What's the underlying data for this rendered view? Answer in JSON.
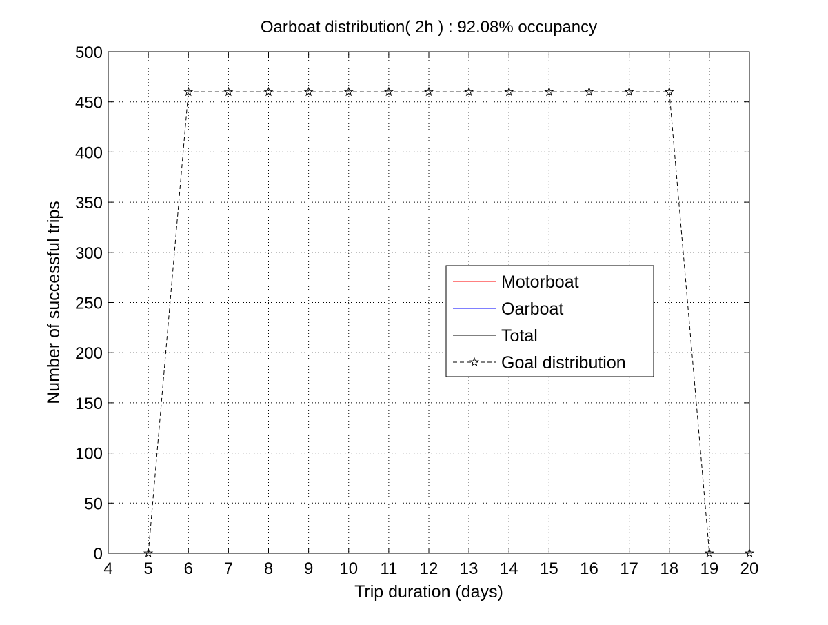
{
  "chart_data": {
    "type": "line",
    "title": "Oarboat distribution( 2h ) : 92.08% occupancy",
    "xlabel": "Trip duration (days)",
    "ylabel": "Number of successful trips",
    "xlim": [
      4,
      20
    ],
    "ylim": [
      0,
      500
    ],
    "xticks": [
      4,
      5,
      6,
      7,
      8,
      9,
      10,
      11,
      12,
      13,
      14,
      15,
      16,
      17,
      18,
      19,
      20
    ],
    "yticks": [
      0,
      50,
      100,
      150,
      200,
      250,
      300,
      350,
      400,
      450,
      500
    ],
    "grid": true,
    "legend_position": "center-right",
    "series": [
      {
        "name": "Motorboat",
        "color": "#ff0000",
        "style": "solid",
        "marker": "none",
        "x": [],
        "y": []
      },
      {
        "name": "Oarboat",
        "color": "#0000ff",
        "style": "solid",
        "marker": "none",
        "x": [],
        "y": []
      },
      {
        "name": "Total",
        "color": "#000000",
        "style": "solid",
        "marker": "none",
        "x": [],
        "y": []
      },
      {
        "name": "Goal distribution",
        "color": "#000000",
        "style": "dashed",
        "marker": "pentagram",
        "x": [
          5,
          6,
          7,
          8,
          9,
          10,
          11,
          12,
          13,
          14,
          15,
          16,
          17,
          18,
          19,
          20
        ],
        "y": [
          0,
          460,
          460,
          460,
          460,
          460,
          460,
          460,
          460,
          460,
          460,
          460,
          460,
          460,
          0,
          0
        ]
      }
    ]
  }
}
